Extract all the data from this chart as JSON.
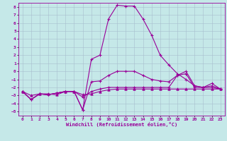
{
  "xlabel": "Windchill (Refroidissement éolien,°C)",
  "bg_color": "#c5e8e8",
  "grid_color": "#a8bece",
  "line_color": "#990099",
  "xlim": [
    -0.5,
    23.5
  ],
  "ylim": [
    -5.5,
    8.5
  ],
  "xticks": [
    0,
    1,
    2,
    3,
    4,
    5,
    6,
    7,
    8,
    9,
    10,
    11,
    12,
    13,
    14,
    15,
    16,
    17,
    18,
    19,
    20,
    21,
    22,
    23
  ],
  "yticks": [
    -5,
    -4,
    -3,
    -2,
    -1,
    0,
    1,
    2,
    3,
    4,
    5,
    6,
    7,
    8
  ],
  "line_big_x": [
    0,
    1,
    2,
    3,
    4,
    5,
    6,
    7,
    8,
    9,
    10,
    11,
    12,
    13,
    14,
    15,
    16,
    17,
    18,
    19,
    20,
    21,
    22,
    23
  ],
  "line_big_y": [
    -2.5,
    -3.5,
    -2.8,
    -2.9,
    -2.7,
    -2.5,
    -2.5,
    -4.8,
    1.5,
    2.0,
    6.5,
    8.2,
    8.1,
    8.1,
    6.5,
    4.5,
    2.0,
    0.8,
    -0.3,
    -1.0,
    -1.8,
    -2.0,
    -2.0,
    -2.2
  ],
  "line_mid_x": [
    0,
    1,
    2,
    3,
    4,
    5,
    6,
    7,
    8,
    9,
    10,
    11,
    12,
    13,
    14,
    15,
    16,
    17,
    18,
    19,
    20,
    21,
    22,
    23
  ],
  "line_mid_y": [
    -2.5,
    -3.5,
    -2.8,
    -2.9,
    -2.7,
    -2.5,
    -2.5,
    -4.8,
    -1.3,
    -1.2,
    -0.5,
    0.0,
    0.0,
    0.0,
    -0.5,
    -1.0,
    -1.2,
    -1.3,
    -0.5,
    0.0,
    -1.8,
    -2.0,
    -1.5,
    -2.2
  ],
  "line_tri_x": [
    0,
    1,
    2,
    3,
    4,
    5,
    6,
    7,
    8,
    9,
    10,
    11,
    12,
    13,
    14,
    15,
    16,
    17,
    18,
    19,
    20,
    21,
    22,
    23
  ],
  "line_tri_y": [
    -2.5,
    -3.0,
    -2.8,
    -2.8,
    -2.9,
    -2.5,
    -2.5,
    -2.9,
    -2.8,
    -2.5,
    -2.3,
    -2.2,
    -2.2,
    -2.2,
    -2.2,
    -2.2,
    -2.2,
    -2.2,
    -2.2,
    -2.2,
    -2.2,
    -2.2,
    -2.2,
    -2.2
  ],
  "line_flat_x": [
    0,
    1,
    2,
    3,
    4,
    5,
    6,
    7,
    8,
    9,
    10,
    11,
    12,
    13,
    14,
    15,
    16,
    17,
    18,
    19,
    20,
    21,
    22,
    23
  ],
  "line_flat_y": [
    -2.5,
    -3.5,
    -2.8,
    -2.9,
    -2.7,
    -2.5,
    -2.5,
    -3.2,
    -2.5,
    -2.2,
    -2.0,
    -2.0,
    -2.0,
    -2.0,
    -2.0,
    -2.0,
    -2.0,
    -2.0,
    -0.5,
    -0.3,
    -2.0,
    -2.0,
    -1.8,
    -2.2
  ]
}
